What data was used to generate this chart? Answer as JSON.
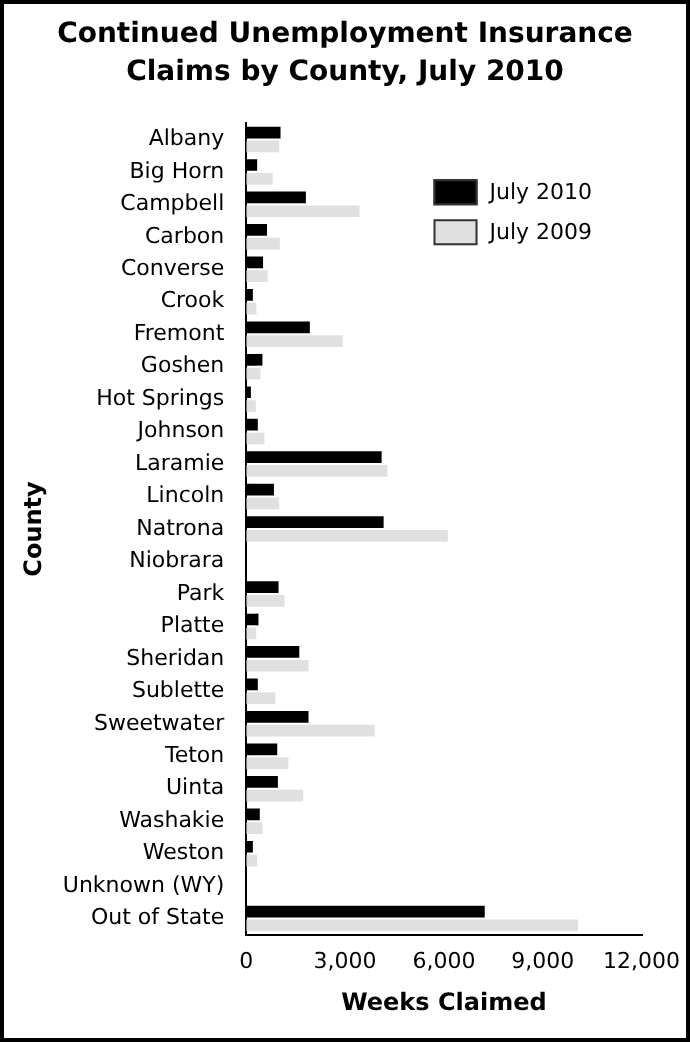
{
  "chart_data": {
    "type": "bar",
    "orientation": "horizontal",
    "title": "Continued Unemployment Insurance Claims by County, July 2010",
    "xlabel": "Weeks Claimed",
    "ylabel": "County",
    "categories": [
      "Albany",
      "Big Horn",
      "Campbell",
      "Carbon",
      "Converse",
      "Crook",
      "Fremont",
      "Goshen",
      "Hot Springs",
      "Johnson",
      "Laramie",
      "Lincoln",
      "Natrona",
      "Niobrara",
      "Park",
      "Platte",
      "Sheridan",
      "Sublette",
      "Sweetwater",
      "Teton",
      "Uinta",
      "Washakie",
      "Weston",
      "Unknown (WY)",
      "Out of State"
    ],
    "series": [
      {
        "name": "July 2010",
        "color": "#000000",
        "values": [
          1040,
          330,
          1810,
          630,
          510,
          200,
          1930,
          490,
          140,
          350,
          4110,
          840,
          4170,
          null,
          980,
          370,
          1610,
          350,
          1890,
          940,
          960,
          410,
          200,
          null,
          7240
        ]
      },
      {
        "name": "July 2009",
        "color": "#e0e0e0",
        "values": [
          1000,
          800,
          3440,
          1020,
          650,
          310,
          2930,
          430,
          290,
          550,
          4290,
          1000,
          6120,
          null,
          1160,
          300,
          1890,
          880,
          3900,
          1280,
          1730,
          490,
          330,
          null,
          10070
        ]
      }
    ],
    "xlim": [
      0,
      12000
    ],
    "xticks": [
      {
        "value": 0,
        "label": "0"
      },
      {
        "value": 3000,
        "label": "3,000"
      },
      {
        "value": 6000,
        "label": "6,000"
      },
      {
        "value": 9000,
        "label": "9,000"
      },
      {
        "value": 12000,
        "label": "12,000"
      }
    ],
    "grid": false,
    "legend": "top right"
  }
}
